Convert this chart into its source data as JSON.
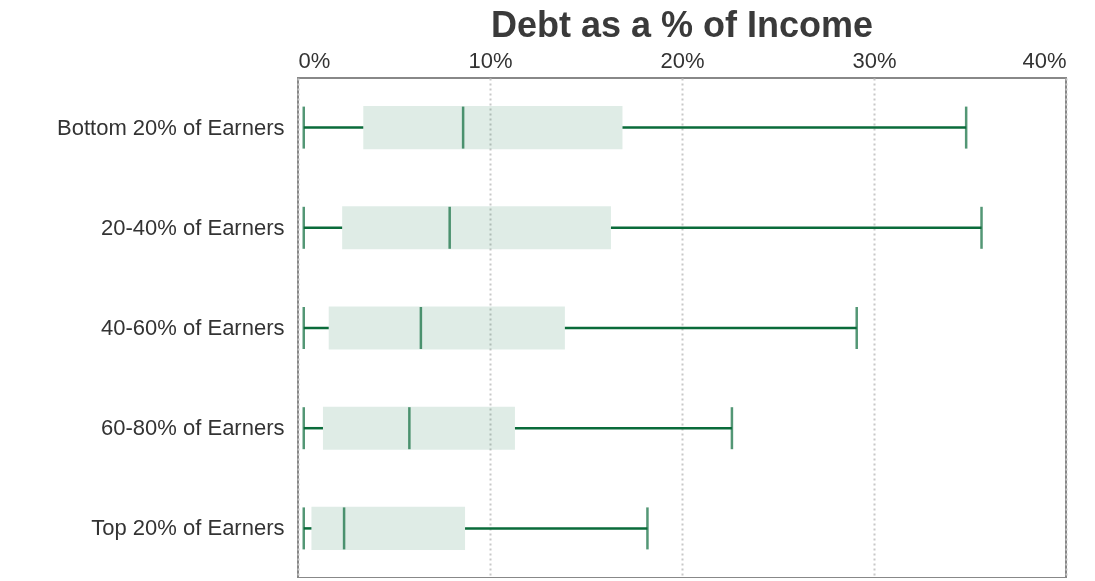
{
  "chart_data": {
    "type": "box",
    "title": "Debt as a % of Income",
    "orientation": "horizontal",
    "categories": [
      "Bottom 20% of Earners",
      "20-40% of Earners",
      "40-60% of Earners",
      "60-80% of Earners",
      "Top 20% of Earners"
    ],
    "series": [
      {
        "color": "#0a6b3a",
        "boxes": [
          {
            "low": 0.3,
            "q1": 3.4,
            "median": 8.6,
            "q3": 16.9,
            "high": 34.8
          },
          {
            "low": 0.3,
            "q1": 2.3,
            "median": 7.9,
            "q3": 16.3,
            "high": 35.6
          },
          {
            "low": 0.3,
            "q1": 1.6,
            "median": 6.4,
            "q3": 13.9,
            "high": 29.1
          },
          {
            "low": 0.3,
            "q1": 1.3,
            "median": 5.8,
            "q3": 11.3,
            "high": 22.6
          },
          {
            "low": 0.3,
            "q1": 0.7,
            "median": 2.4,
            "q3": 8.7,
            "high": 18.2
          }
        ]
      }
    ],
    "xlim": [
      0,
      40
    ],
    "xticks": [
      {
        "value": 0,
        "label": "0%"
      },
      {
        "value": 10,
        "label": "10%"
      },
      {
        "value": 20,
        "label": "20%"
      },
      {
        "value": 30,
        "label": "30%"
      },
      {
        "value": 40,
        "label": "40%"
      }
    ],
    "grid": "x"
  }
}
